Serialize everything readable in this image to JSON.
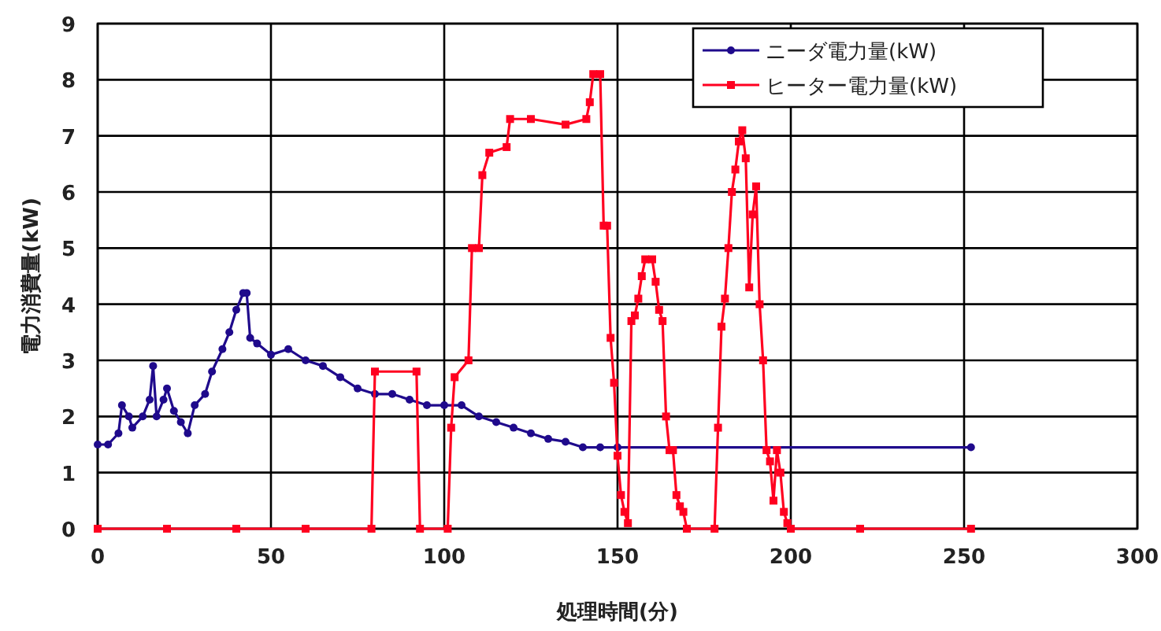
{
  "chart_data": {
    "type": "line",
    "xlabel": "処理時間(分)",
    "ylabel": "電力消費量(kW)",
    "xlim": [
      0,
      300
    ],
    "xticks": [
      0,
      50,
      100,
      150,
      200,
      250,
      300
    ],
    "ylim": [
      0,
      9
    ],
    "yticks": [
      0,
      1,
      2,
      3,
      4,
      5,
      6,
      7,
      8,
      9
    ],
    "grid": true,
    "legend": "top right",
    "series": [
      {
        "name": "ニーダ電力量(kW)",
        "color": "#1f0a8c",
        "marker": "circle",
        "x": [
          0,
          3,
          6,
          7,
          9,
          10,
          13,
          15,
          16,
          17,
          19,
          20,
          22,
          24,
          26,
          28,
          31,
          33,
          36,
          38,
          40,
          42,
          43,
          44,
          46,
          50,
          55,
          60,
          65,
          70,
          75,
          80,
          85,
          90,
          95,
          100,
          105,
          110,
          115,
          120,
          125,
          130,
          135,
          140,
          145,
          150,
          252
        ],
        "values": [
          1.5,
          1.5,
          1.7,
          2.2,
          2.0,
          1.8,
          2.0,
          2.3,
          2.9,
          2.0,
          2.3,
          2.5,
          2.1,
          1.9,
          1.7,
          2.2,
          2.4,
          2.8,
          3.2,
          3.5,
          3.9,
          4.2,
          4.2,
          3.4,
          3.3,
          3.1,
          3.2,
          3.0,
          2.9,
          2.7,
          2.5,
          2.4,
          2.4,
          2.3,
          2.2,
          2.2,
          2.2,
          2.0,
          1.9,
          1.8,
          1.7,
          1.6,
          1.55,
          1.45,
          1.45,
          1.45,
          1.45
        ]
      },
      {
        "name": "ヒーター電力量(kW)",
        "color": "#ff0020",
        "marker": "square",
        "x": [
          0,
          20,
          40,
          60,
          79,
          80,
          92,
          93,
          101,
          102,
          103,
          107,
          108,
          110,
          111,
          113,
          118,
          119,
          125,
          135,
          141,
          142,
          143,
          145,
          146,
          147,
          148,
          149,
          150,
          151,
          152,
          153,
          154,
          155,
          156,
          157,
          158,
          160,
          161,
          162,
          163,
          164,
          165,
          166,
          167,
          168,
          169,
          170,
          178,
          179,
          180,
          181,
          182,
          183,
          184,
          185,
          186,
          187,
          188,
          189,
          190,
          191,
          192,
          193,
          194,
          195,
          196,
          197,
          198,
          199,
          200,
          220,
          252
        ],
        "values": [
          0,
          0,
          0,
          0,
          0,
          2.8,
          2.8,
          0,
          0,
          1.8,
          2.7,
          3.0,
          5.0,
          5.0,
          6.3,
          6.7,
          6.8,
          7.3,
          7.3,
          7.2,
          7.3,
          7.6,
          8.1,
          8.1,
          5.4,
          5.4,
          3.4,
          2.6,
          1.3,
          0.6,
          0.3,
          0.1,
          3.7,
          3.8,
          4.1,
          4.5,
          4.8,
          4.8,
          4.4,
          3.9,
          3.7,
          2.0,
          1.4,
          1.4,
          0.6,
          0.4,
          0.3,
          0,
          0,
          1.8,
          3.6,
          4.1,
          5.0,
          6.0,
          6.4,
          6.9,
          7.1,
          6.6,
          4.3,
          5.6,
          6.1,
          4.0,
          3.0,
          1.4,
          1.2,
          0.5,
          1.4,
          1.0,
          0.3,
          0.1,
          0,
          0,
          0
        ]
      }
    ]
  }
}
